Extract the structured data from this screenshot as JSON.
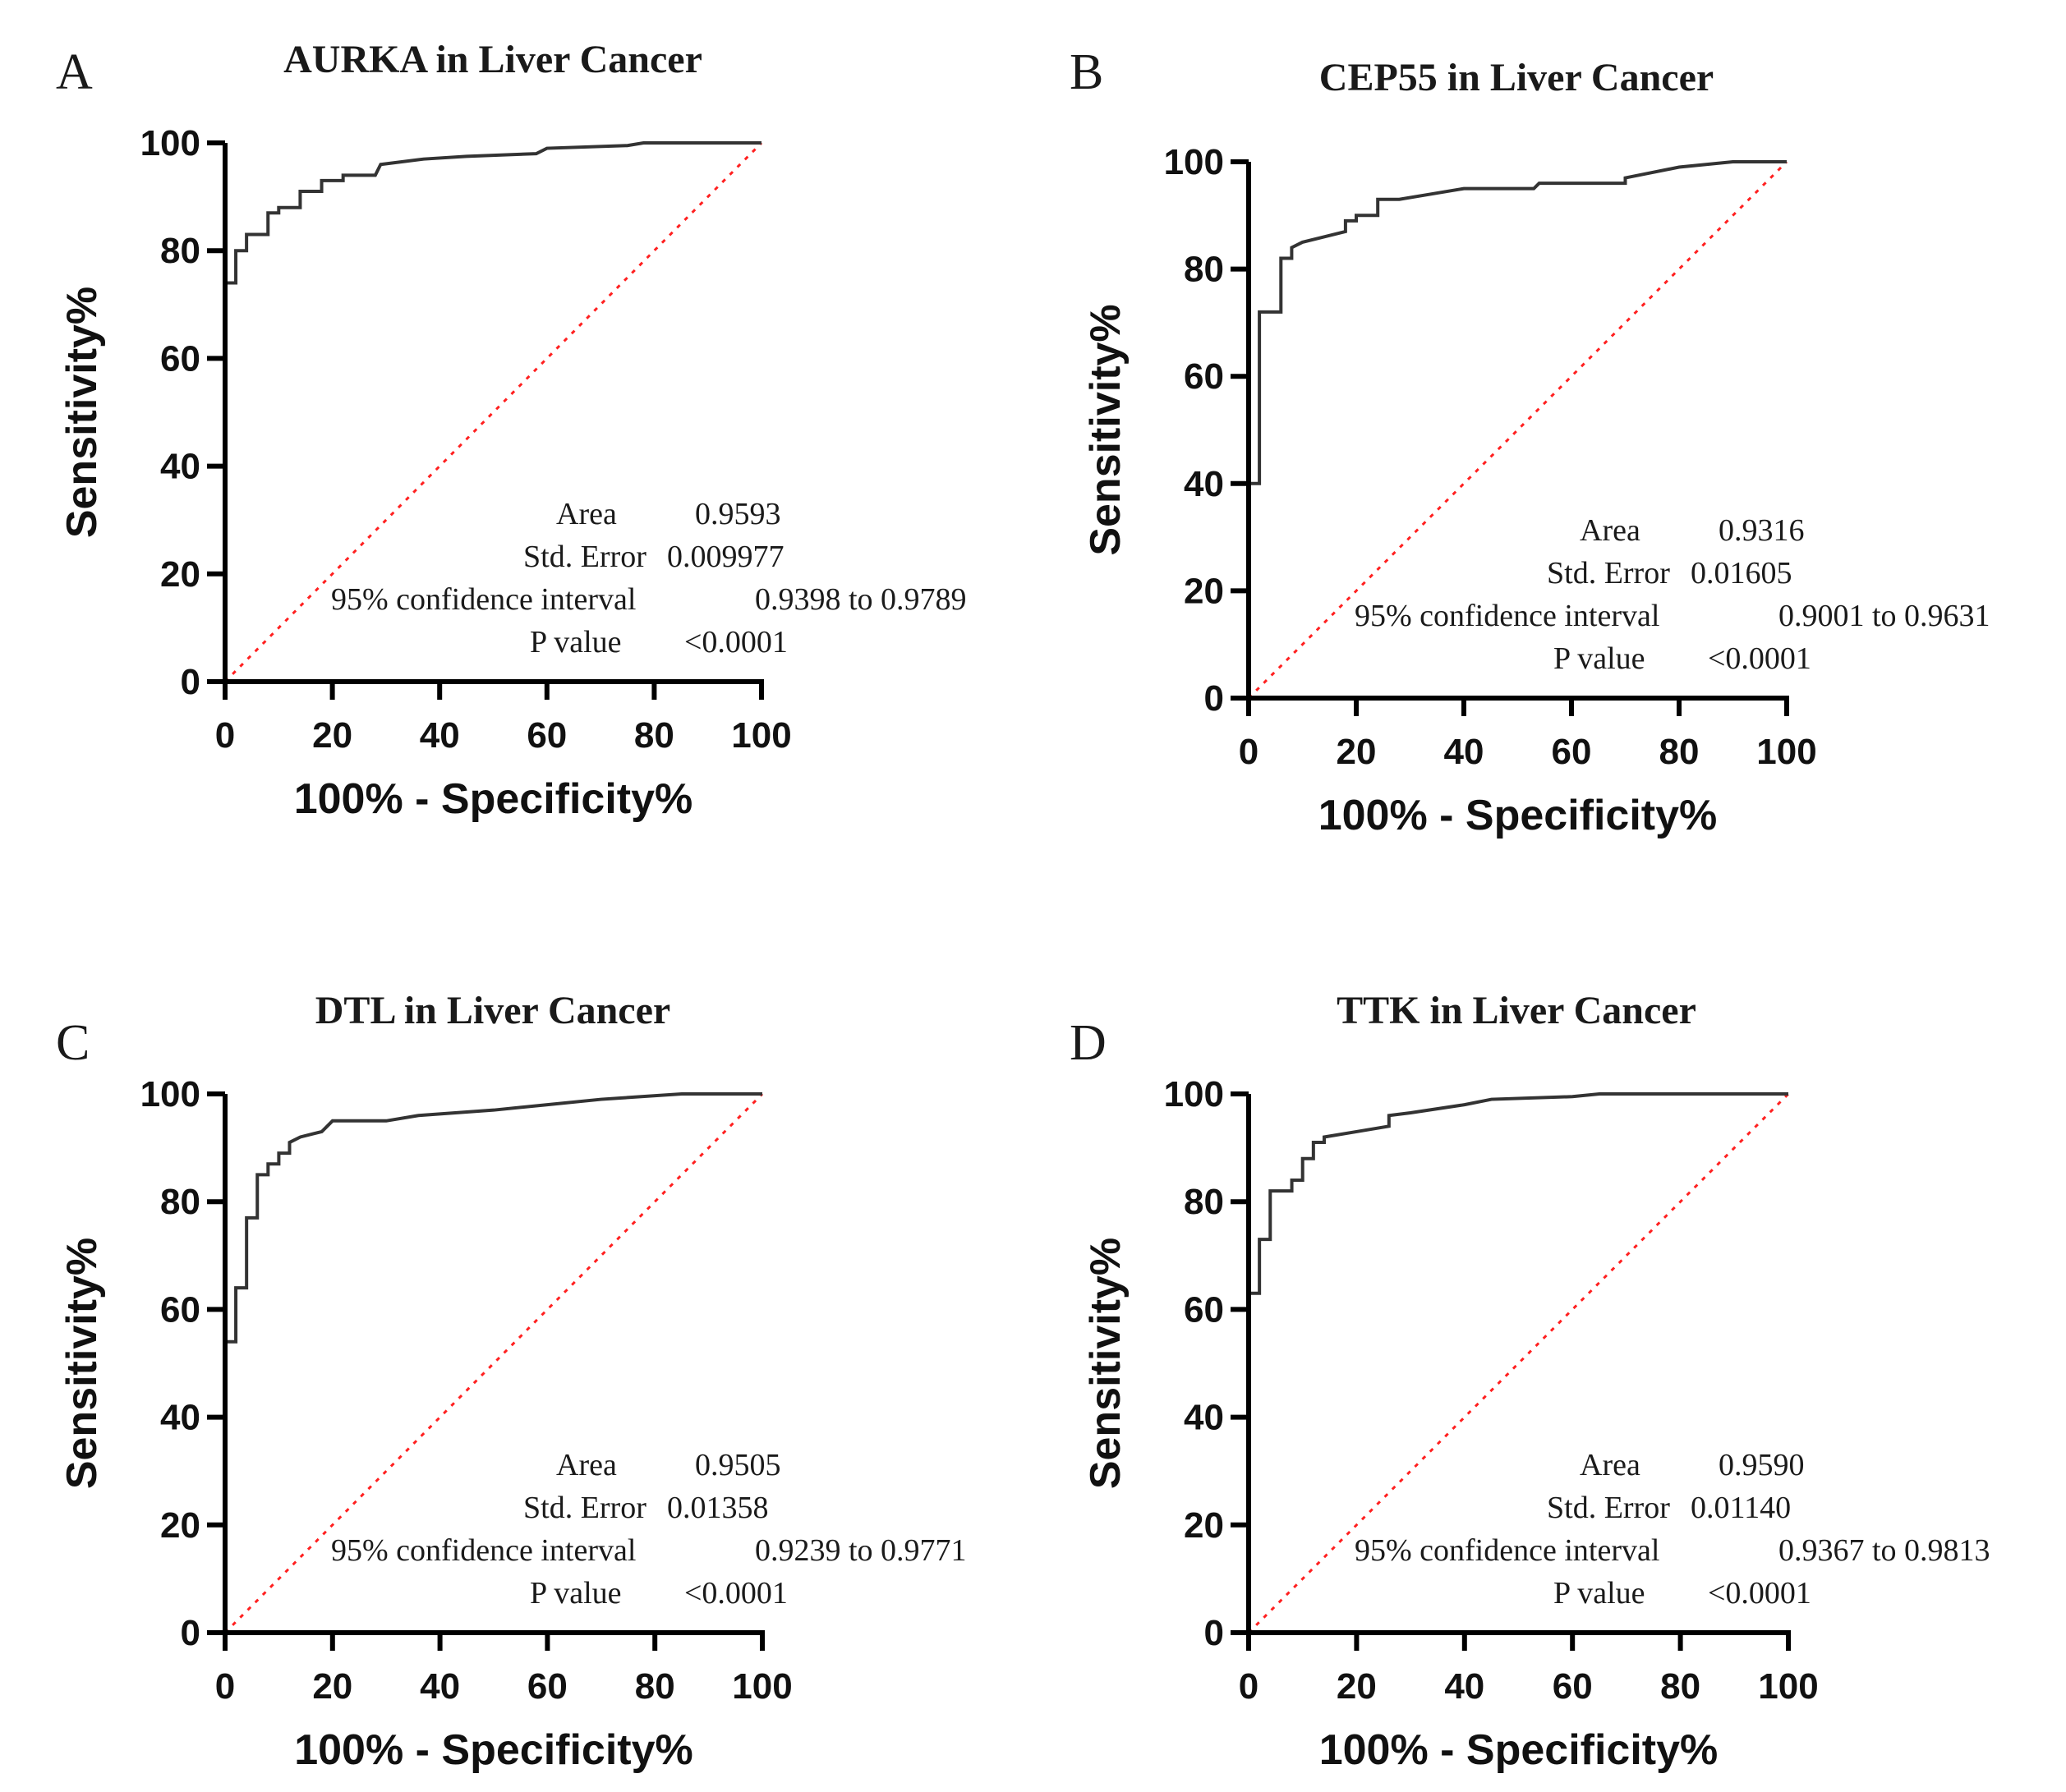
{
  "chart_data": [
    {
      "type": "line",
      "panel": "A",
      "title": "AURKA in Liver Cancer",
      "xlabel": "100% - Specificity%",
      "ylabel": "Sensitivity%",
      "xlim": [
        0,
        100
      ],
      "ylim": [
        0,
        100
      ],
      "xticks": [
        "0",
        "20",
        "40",
        "60",
        "80",
        "100"
      ],
      "yticks": [
        "0",
        "20",
        "40",
        "60",
        "80",
        "100"
      ],
      "roc": [
        [
          0,
          0
        ],
        [
          0,
          74
        ],
        [
          2,
          74
        ],
        [
          2,
          80
        ],
        [
          4,
          80
        ],
        [
          4,
          83
        ],
        [
          8,
          83
        ],
        [
          8,
          87
        ],
        [
          10,
          87
        ],
        [
          10,
          88
        ],
        [
          14,
          88
        ],
        [
          14,
          91
        ],
        [
          18,
          91
        ],
        [
          18,
          93
        ],
        [
          22,
          93
        ],
        [
          22,
          94
        ],
        [
          28,
          94
        ],
        [
          29,
          96
        ],
        [
          37,
          97
        ],
        [
          45,
          97.5
        ],
        [
          58,
          98
        ],
        [
          60,
          99
        ],
        [
          75,
          99.5
        ],
        [
          78,
          100
        ],
        [
          100,
          100
        ]
      ],
      "reference": [
        [
          0,
          0
        ],
        [
          100,
          100
        ]
      ],
      "stats": {
        "area_label": "Area",
        "area": "0.9593",
        "se_label": "Std. Error",
        "se": "0.009977",
        "ci_label": "95% confidence interval",
        "ci": "0.9398 to 0.9789",
        "p_label": "P value",
        "p": "<0.0001"
      }
    },
    {
      "type": "line",
      "panel": "B",
      "title": "CEP55 in Liver Cancer",
      "xlabel": "100% - Specificity%",
      "ylabel": "Sensitivity%",
      "xlim": [
        0,
        100
      ],
      "ylim": [
        0,
        100
      ],
      "xticks": [
        "0",
        "20",
        "40",
        "60",
        "80",
        "100"
      ],
      "yticks": [
        "0",
        "20",
        "40",
        "60",
        "80",
        "100"
      ],
      "roc": [
        [
          0,
          0
        ],
        [
          0,
          40
        ],
        [
          2,
          40
        ],
        [
          2,
          72
        ],
        [
          6,
          72
        ],
        [
          6,
          82
        ],
        [
          8,
          82
        ],
        [
          8,
          84
        ],
        [
          10,
          85
        ],
        [
          14,
          86
        ],
        [
          18,
          87
        ],
        [
          18,
          89
        ],
        [
          20,
          89
        ],
        [
          20,
          90
        ],
        [
          24,
          90
        ],
        [
          24,
          93
        ],
        [
          28,
          93
        ],
        [
          34,
          94
        ],
        [
          40,
          95
        ],
        [
          53,
          95
        ],
        [
          54,
          96
        ],
        [
          70,
          96
        ],
        [
          70,
          97
        ],
        [
          80,
          99
        ],
        [
          90,
          100
        ],
        [
          100,
          100
        ]
      ],
      "reference": [
        [
          0,
          0
        ],
        [
          100,
          100
        ]
      ],
      "stats": {
        "area_label": "Area",
        "area": "0.9316",
        "se_label": "Std. Error",
        "se": "0.01605",
        "ci_label": "95% confidence interval",
        "ci": "0.9001 to 0.9631",
        "p_label": "P value",
        "p": "<0.0001"
      }
    },
    {
      "type": "line",
      "panel": "C",
      "title": "DTL in Liver Cancer",
      "xlabel": "100% - Specificity%",
      "ylabel": "Sensitivity%",
      "xlim": [
        0,
        100
      ],
      "ylim": [
        0,
        100
      ],
      "xticks": [
        "0",
        "20",
        "40",
        "60",
        "80",
        "100"
      ],
      "yticks": [
        "0",
        "20",
        "40",
        "60",
        "80",
        "100"
      ],
      "roc": [
        [
          0,
          0
        ],
        [
          0,
          54
        ],
        [
          2,
          54
        ],
        [
          2,
          64
        ],
        [
          4,
          64
        ],
        [
          4,
          77
        ],
        [
          6,
          77
        ],
        [
          6,
          85
        ],
        [
          8,
          85
        ],
        [
          8,
          87
        ],
        [
          10,
          87
        ],
        [
          10,
          89
        ],
        [
          12,
          89
        ],
        [
          12,
          91
        ],
        [
          14,
          92
        ],
        [
          18,
          93
        ],
        [
          20,
          95
        ],
        [
          30,
          95
        ],
        [
          36,
          96
        ],
        [
          50,
          97
        ],
        [
          60,
          98
        ],
        [
          70,
          99
        ],
        [
          85,
          100
        ],
        [
          100,
          100
        ]
      ],
      "reference": [
        [
          0,
          0
        ],
        [
          100,
          100
        ]
      ],
      "stats": {
        "area_label": "Area",
        "area": "0.9505",
        "se_label": "Std. Error",
        "se": "0.01358",
        "ci_label": "95% confidence interval",
        "ci": "0.9239 to 0.9771",
        "p_label": "P value",
        "p": "<0.0001"
      }
    },
    {
      "type": "line",
      "panel": "D",
      "title": "TTK in Liver Cancer",
      "xlabel": "100% - Specificity%",
      "ylabel": "Sensitivity%",
      "xlim": [
        0,
        100
      ],
      "ylim": [
        0,
        100
      ],
      "xticks": [
        "0",
        "20",
        "40",
        "60",
        "80",
        "100"
      ],
      "yticks": [
        "0",
        "20",
        "40",
        "60",
        "80",
        "100"
      ],
      "roc": [
        [
          0,
          0
        ],
        [
          0,
          63
        ],
        [
          2,
          63
        ],
        [
          2,
          73
        ],
        [
          4,
          73
        ],
        [
          4,
          82
        ],
        [
          8,
          82
        ],
        [
          8,
          84
        ],
        [
          10,
          84
        ],
        [
          10,
          88
        ],
        [
          12,
          88
        ],
        [
          12,
          91
        ],
        [
          14,
          91
        ],
        [
          14,
          92
        ],
        [
          20,
          93
        ],
        [
          26,
          94
        ],
        [
          26,
          96
        ],
        [
          30,
          96.5
        ],
        [
          40,
          98
        ],
        [
          45,
          99
        ],
        [
          60,
          99.5
        ],
        [
          65,
          100
        ],
        [
          100,
          100
        ]
      ],
      "reference": [
        [
          0,
          0
        ],
        [
          100,
          100
        ]
      ],
      "stats": {
        "area_label": "Area",
        "area": "0.9590",
        "se_label": "Std. Error",
        "se": "0.01140",
        "ci_label": "95% confidence interval",
        "ci": "0.9367 to 0.9813",
        "p_label": "P value",
        "p": "<0.0001"
      }
    }
  ],
  "colors": {
    "roc": "#333333",
    "reference": "#ff2020",
    "axis": "#000000"
  }
}
